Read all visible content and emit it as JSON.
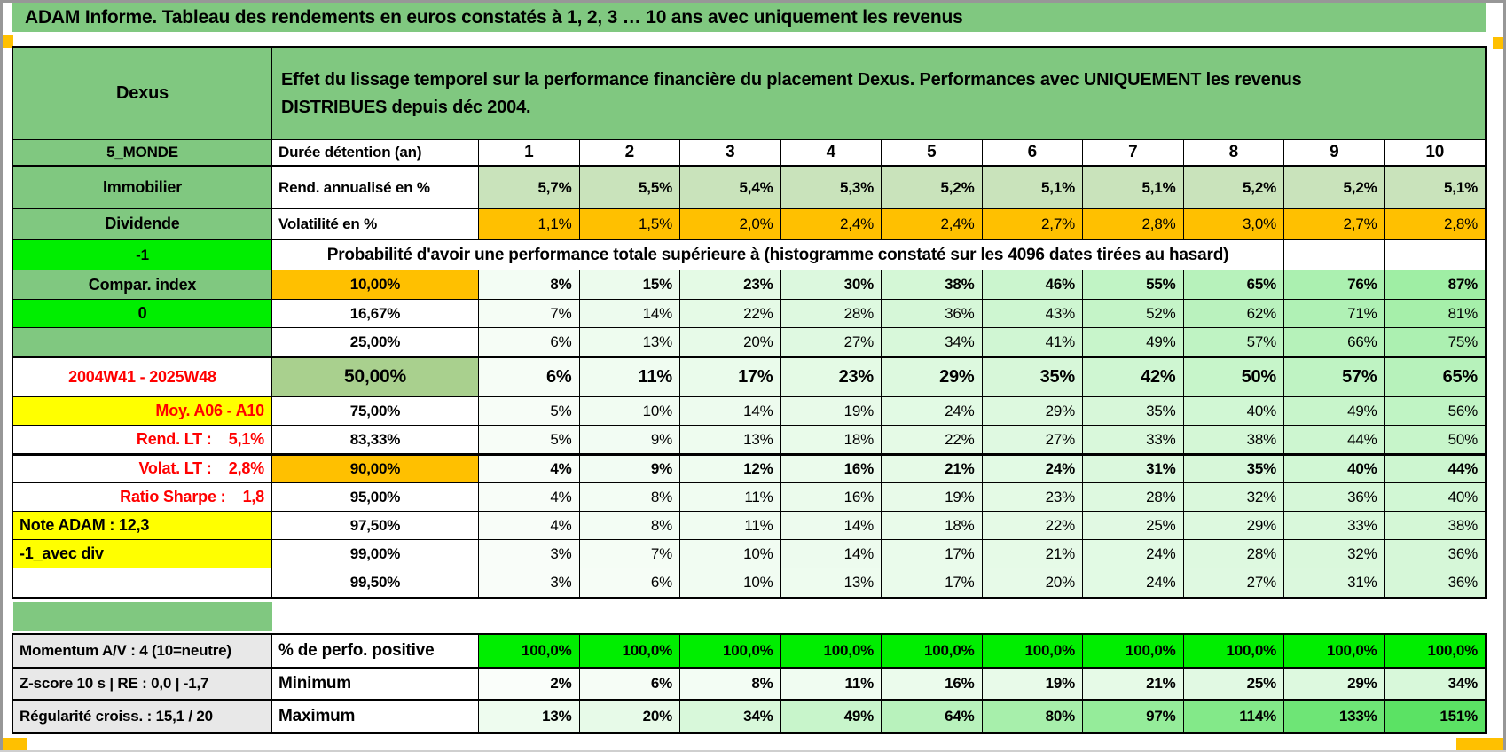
{
  "report": {
    "title": "ADAM Informe. Tableau des rendements en euros constatés à 1, 2, 3 … 10 ans avec uniquement les revenus",
    "product": "Dexus",
    "description": "Effet du lissage temporel sur la performance financière du placement Dexus. Performances avec UNIQUEMENT les revenus\nDISTRIBUES depuis déc 2004."
  },
  "colors": {
    "band": "#80C880",
    "lime": "#00EE00",
    "orange": "#FFC000",
    "yellow": "#FFFF00",
    "sage": "#A9D08E",
    "lg": "#C9E3BB",
    "fgray": "#E8E8E8",
    "red": "#FF0000",
    "gradlow": "#FCFEFC",
    "gradhigh": "#57E160"
  },
  "table": {
    "col1_header": "5_MONDE",
    "col2_header": "Durée détention (an)",
    "years": [
      "1",
      "2",
      "3",
      "4",
      "5",
      "6",
      "7",
      "8",
      "9",
      "10"
    ],
    "rows": [
      {
        "label": "Immobilier",
        "ls": "green",
        "col2": "Rend. annualisé en %",
        "c2s": "wl",
        "values": [
          "5,7%",
          "5,5%",
          "5,4%",
          "5,3%",
          "5,2%",
          "5,1%",
          "5,1%",
          "5,2%",
          "5,2%",
          "5,1%"
        ],
        "vs": "lg",
        "bold": true
      },
      {
        "label": "Dividende",
        "ls": "green",
        "col2": "Volatilité en %",
        "c2s": "wl",
        "values": [
          "1,1%",
          "1,5%",
          "2,0%",
          "2,4%",
          "2,4%",
          "2,7%",
          "2,8%",
          "3,0%",
          "2,7%",
          "2,8%"
        ],
        "vs": "or",
        "tb": true
      },
      {
        "type": "proba",
        "label": "-1",
        "ls": "lime",
        "note": "Probabilité d'avoir une performance totale supérieure à (histogramme constaté sur les 4096 dates tirées au hasard)"
      },
      {
        "label": "Compar. index",
        "ls": "green",
        "col2": "10,00%",
        "c2s": "orc",
        "values": [
          "8%",
          "15%",
          "23%",
          "30%",
          "38%",
          "46%",
          "55%",
          "65%",
          "76%",
          "87%"
        ],
        "vs": "grad",
        "bold": true
      },
      {
        "label": "0",
        "ls": "lime",
        "col2": "16,67%",
        "c2s": "wc",
        "values": [
          "7%",
          "14%",
          "22%",
          "28%",
          "36%",
          "43%",
          "52%",
          "62%",
          "71%",
          "81%"
        ],
        "vs": "grad"
      },
      {
        "label": "",
        "ls": "green",
        "col2": "25,00%",
        "c2s": "wc",
        "values": [
          "6%",
          "13%",
          "20%",
          "27%",
          "34%",
          "41%",
          "49%",
          "57%",
          "66%",
          "75%"
        ],
        "vs": "grad"
      },
      {
        "label": "2004W41 - 2025W48",
        "ls": "redc",
        "col2": "50,00%",
        "c2s": "sage",
        "values": [
          "6%",
          "11%",
          "17%",
          "23%",
          "29%",
          "35%",
          "42%",
          "50%",
          "57%",
          "65%"
        ],
        "vs": "grad",
        "bold": true,
        "big": true,
        "thick": true
      },
      {
        "label": "Moy. A06 - A10",
        "ls": "yelr",
        "col2": "75,00%",
        "c2s": "wc",
        "values": [
          "5%",
          "10%",
          "14%",
          "19%",
          "24%",
          "29%",
          "35%",
          "40%",
          "49%",
          "56%"
        ],
        "vs": "grad"
      },
      {
        "label": "Rend. LT :    5,1%",
        "ls": "redr",
        "col2": "83,33%",
        "c2s": "wc",
        "values": [
          "5%",
          "9%",
          "13%",
          "18%",
          "22%",
          "27%",
          "33%",
          "38%",
          "44%",
          "50%"
        ],
        "vs": "grad"
      },
      {
        "label": "Volat. LT :    2,8%",
        "ls": "redr",
        "col2": "90,00%",
        "c2s": "orc",
        "values": [
          "4%",
          "9%",
          "12%",
          "16%",
          "21%",
          "24%",
          "31%",
          "35%",
          "40%",
          "44%"
        ],
        "vs": "grad",
        "bold": true,
        "thick": true
      },
      {
        "label": "Ratio Sharpe :    1,8",
        "ls": "redr",
        "col2": "95,00%",
        "c2s": "wc",
        "values": [
          "4%",
          "8%",
          "11%",
          "16%",
          "19%",
          "23%",
          "28%",
          "32%",
          "36%",
          "40%"
        ],
        "vs": "grad"
      },
      {
        "label": "Note ADAM : 12,3",
        "ls": "yell",
        "col2": "97,50%",
        "c2s": "wc",
        "values": [
          "4%",
          "8%",
          "11%",
          "14%",
          "18%",
          "22%",
          "25%",
          "29%",
          "33%",
          "38%"
        ],
        "vs": "grad"
      },
      {
        "label": "-1_avec div",
        "ls": "yell",
        "col2": "99,00%",
        "c2s": "wc",
        "values": [
          "3%",
          "7%",
          "10%",
          "14%",
          "17%",
          "21%",
          "24%",
          "28%",
          "32%",
          "36%"
        ],
        "vs": "grad"
      },
      {
        "label": "",
        "ls": "white",
        "col2": "99,50%",
        "c2s": "wc",
        "values": [
          "3%",
          "6%",
          "10%",
          "13%",
          "17%",
          "20%",
          "24%",
          "27%",
          "31%",
          "36%"
        ],
        "vs": "grad"
      }
    ]
  },
  "footer": {
    "rows": [
      {
        "label": "Momentum A/V : 4 (10=neutre)",
        "col2": "% de perfo. positive",
        "values": [
          "100,0%",
          "100,0%",
          "100,0%",
          "100,0%",
          "100,0%",
          "100,0%",
          "100,0%",
          "100,0%",
          "100,0%",
          "100,0%"
        ],
        "vs": "lime"
      },
      {
        "label": "Z-score 10 s | RE : 0,0 | -1,7",
        "col2": "Minimum",
        "values": [
          "2%",
          "6%",
          "8%",
          "11%",
          "16%",
          "19%",
          "21%",
          "25%",
          "29%",
          "34%"
        ],
        "vs": "grad"
      },
      {
        "label": "Régularité croiss. : 15,1 / 20",
        "col2": "Maximum",
        "values": [
          "13%",
          "20%",
          "34%",
          "49%",
          "64%",
          "80%",
          "97%",
          "114%",
          "133%",
          "151%"
        ],
        "vs": "grad"
      }
    ]
  }
}
